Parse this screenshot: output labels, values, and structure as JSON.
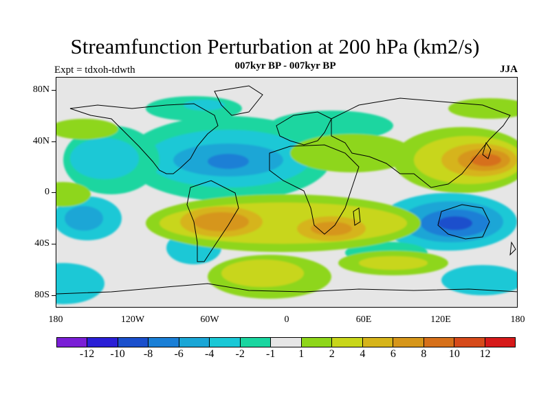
{
  "title": "Streamfunction Perturbation at 200 hPa (km2/s)",
  "subtitle": "007kyr BP - 007kyr BP",
  "expt_label": "Expt = tdxoh-tdwth",
  "season": "JJA",
  "lat_labels": [
    "80N",
    "40N",
    "0",
    "40S",
    "80S"
  ],
  "lon_labels": [
    "180",
    "120W",
    "60W",
    "0",
    "60E",
    "120E",
    "180"
  ],
  "colorbar": {
    "colors": [
      "#7a1fd6",
      "#2a1fd6",
      "#1a4fcc",
      "#1a7fd6",
      "#1aa6d6",
      "#1ac8d6",
      "#1ad6a0",
      "#e6e6e6",
      "#8ed61a",
      "#c8d61a",
      "#d6b41a",
      "#d6961a",
      "#d6701a",
      "#d64a1a",
      "#d61a1a"
    ],
    "labels": [
      "-12",
      "-10",
      "-8",
      "-6",
      "-4",
      "-2",
      "-1",
      "1",
      "2",
      "4",
      "6",
      "8",
      "10",
      "12"
    ]
  },
  "legend_levels": {
    "neg6": "#1a7fd6",
    "neg4": "#1aa6d6",
    "neg2": "#1ac8d6",
    "neg1": "#1ad6a0",
    "pos2": "#8ed61a",
    "pos4": "#c8d61a",
    "pos6": "#d6b41a",
    "pos8": "#d6961a",
    "pos10": "#d6701a"
  }
}
